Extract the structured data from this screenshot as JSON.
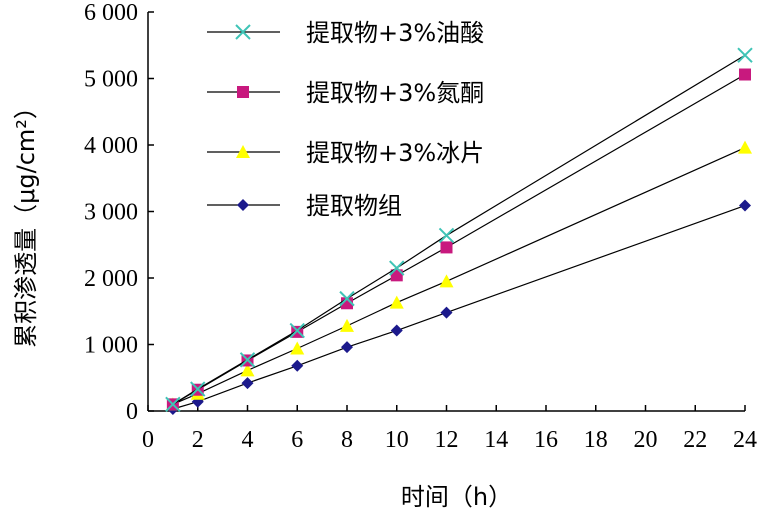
{
  "chart_data": {
    "type": "line",
    "title": "",
    "xlabel": "时间（h）",
    "ylabel": "累积渗透量（μg/cm²）",
    "xlim": [
      0,
      24
    ],
    "ylim": [
      0,
      6000
    ],
    "xticks": [
      0,
      2,
      4,
      6,
      8,
      10,
      12,
      14,
      16,
      18,
      20,
      22,
      24
    ],
    "yticks": [
      0,
      1000,
      2000,
      3000,
      4000,
      5000,
      6000
    ],
    "xtick_labels": [
      "0",
      "2",
      "4",
      "6",
      "8",
      "10",
      "12",
      "14",
      "16",
      "18",
      "20",
      "22",
      "24"
    ],
    "ytick_labels": [
      "0",
      "1 000",
      "2 000",
      "3 000",
      "4 000",
      "5 000",
      "6 000"
    ],
    "grid": false,
    "legend_position": "top-left",
    "x": [
      1,
      2,
      4,
      6,
      8,
      10,
      12,
      24
    ],
    "series": [
      {
        "name": "提取物+3%油酸",
        "marker": "x",
        "color": "#3fc4b6",
        "values": [
          100,
          330,
          770,
          1210,
          1690,
          2150,
          2640,
          5350
        ]
      },
      {
        "name": "提取物+3%氮酮",
        "marker": "square",
        "color": "#c8197e",
        "values": [
          100,
          320,
          760,
          1190,
          1620,
          2040,
          2460,
          5060
        ]
      },
      {
        "name": "提取物+3%冰片",
        "marker": "triangle",
        "color": "#ffff00",
        "values": [
          100,
          260,
          610,
          940,
          1280,
          1630,
          1950,
          3960
        ]
      },
      {
        "name": "提取物组",
        "marker": "diamond",
        "color": "#1c1a8c",
        "values": [
          30,
          140,
          420,
          680,
          960,
          1210,
          1480,
          3090
        ]
      }
    ]
  }
}
